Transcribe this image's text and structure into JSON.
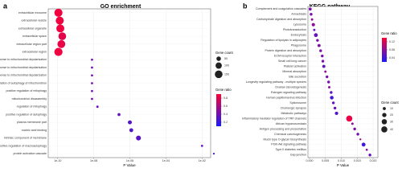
{
  "chart_data": [
    {
      "type": "dot",
      "label": "a",
      "title": "GO enrichment",
      "xlabel": "P Value",
      "log_x": true,
      "xlim": [
        3e-11,
        0.03
      ],
      "xticks": [
        {
          "value": 1e-10,
          "label": "1e-10"
        },
        {
          "value": 1e-08,
          "label": "1e-08"
        },
        {
          "value": 1e-06,
          "label": "1e-06"
        },
        {
          "value": 0.0001,
          "label": "1e-04"
        },
        {
          "value": 0.01,
          "label": "1e-02"
        }
      ],
      "categories": [
        "extracellular exosome",
        "extracellular vesicle",
        "extracellular organelle",
        "extracellular space",
        "extracellular region part",
        "extracellular region",
        "response to mitochondrial depolarisation",
        "positive regulation of mitophagy in response to mitochondrial depolarisation",
        "positive regulation of autophagy of mitochondrion in response to mitochondrial depolarization",
        "positive regulation of autophagy of mitochondrion",
        "positive regulation of mitophagy",
        "mitochondrion disassembly",
        "regulation of mitophagy",
        "positive regulation of autophagy",
        "plasma membrane part",
        "nucleic acid binding",
        "intrinsic component of membrane",
        "positive regulation of macroautophagy",
        "protein activation cascade"
      ],
      "values": [
        1.1e-10,
        1.3e-10,
        1.4e-10,
        1.8e-10,
        1.6e-10,
        1.1e-10,
        8e-09,
        8e-09,
        8e-09,
        8e-09,
        8e-09,
        8e-09,
        1.6e-08,
        2.5e-07,
        1e-06,
        1.2e-06,
        3e-06,
        0.01,
        0.045
      ],
      "sizes": [
        165,
        160,
        160,
        150,
        155,
        170,
        12,
        12,
        12,
        12,
        12,
        12,
        14,
        22,
        40,
        38,
        60,
        12,
        8
      ],
      "ratios": [
        0.85,
        0.85,
        0.85,
        0.8,
        0.82,
        0.85,
        0.4,
        0.4,
        0.4,
        0.4,
        0.4,
        0.4,
        0.38,
        0.35,
        0.3,
        0.3,
        0.32,
        0.35,
        0.15
      ],
      "size_legend": {
        "title": "Gene count",
        "values": [
          50,
          100,
          150
        ]
      },
      "color_legend": {
        "title": "Gene ratio",
        "lim": [
          0.1,
          0.9
        ],
        "ticks": [
          0.8,
          0.6,
          0.4,
          0.2
        ],
        "low_color": "#1a1aff",
        "high_color": "#ff0033"
      }
    },
    {
      "type": "dot",
      "label": "b",
      "title": "KEGG pathway",
      "xlabel": "P Value",
      "log_x": false,
      "xlim": [
        -0.0005,
        0.0215
      ],
      "xticks": [
        {
          "value": 0,
          "label": "0.000"
        },
        {
          "value": 0.005,
          "label": "0.005"
        },
        {
          "value": 0.01,
          "label": "0.010"
        },
        {
          "value": 0.015,
          "label": "0.015"
        },
        {
          "value": 0.02,
          "label": "0.020"
        }
      ],
      "categories": [
        "Complement and coagulation cascades",
        "Amoebiasis",
        "Carbohydrate digestion and absorption",
        "Lysosome",
        "Phototransduction",
        "Endocytosis",
        "Regulation of lipolysis in adipocytes",
        "Phagosome",
        "Protein digestion and absorption",
        "ECM-receptor interaction",
        "Small cell lung cancer",
        "Platelet activation",
        "Mineral absorption",
        "Bile secretion",
        "Longevity regulating pathway - multiple species",
        "Ovarian steroidogenesis",
        "Estrogen signaling pathway",
        "Human papillomavirus infection",
        "Spliceosome",
        "Cholinergic synapse",
        "Metabolic pathways",
        "Inflammatory mediator regulation of TRP channels",
        "African trypanosomiasis",
        "Antigen processing and presentation",
        "Chemical carcinogenesis",
        "Mucin type O-glycan biosynthesis",
        "PI3K-Akt signaling pathway",
        "Type II diabetes mellitus",
        "Gap junction"
      ],
      "values": [
        0.0002,
        0.0005,
        0.0008,
        0.0012,
        0.0015,
        0.002,
        0.0025,
        0.003,
        0.0035,
        0.004,
        0.0042,
        0.0045,
        0.005,
        0.0055,
        0.006,
        0.0062,
        0.0068,
        0.007,
        0.0075,
        0.008,
        0.0085,
        0.0125,
        0.0135,
        0.0142,
        0.0152,
        0.016,
        0.017,
        0.018,
        0.019
      ],
      "sizes": [
        10,
        8,
        6,
        12,
        6,
        16,
        8,
        10,
        8,
        8,
        8,
        10,
        6,
        8,
        8,
        6,
        8,
        14,
        8,
        8,
        12,
        40,
        6,
        8,
        8,
        4,
        16,
        5,
        8
      ],
      "ratios": [
        0.07,
        0.07,
        0.08,
        0.08,
        0.06,
        0.06,
        0.07,
        0.07,
        0.07,
        0.07,
        0.07,
        0.06,
        0.08,
        0.07,
        0.07,
        0.08,
        0.06,
        0.04,
        0.06,
        0.06,
        0.05,
        0.13,
        0.08,
        0.07,
        0.06,
        0.09,
        0.04,
        0.08,
        0.06
      ],
      "size_legend": {
        "title": "Gene count",
        "values": [
          10,
          20,
          30,
          40
        ]
      },
      "color_legend": {
        "title": "Gene ratio",
        "lim": [
          0.02,
          0.14
        ],
        "ticks": [
          0.12,
          0.08,
          0.04
        ],
        "low_color": "#1a1aff",
        "high_color": "#ff0033"
      }
    }
  ]
}
